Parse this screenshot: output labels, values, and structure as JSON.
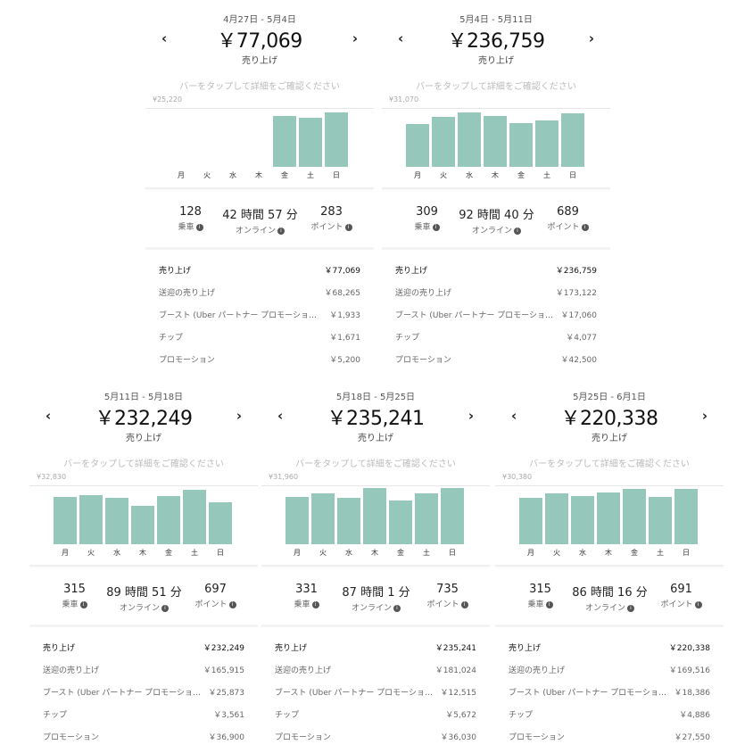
{
  "common": {
    "sales_label": "売り上げ",
    "hint": "バーをタップして詳細をご確認ください",
    "days": [
      "月",
      "火",
      "水",
      "木",
      "金",
      "土",
      "日"
    ],
    "stat_labels": [
      "乗車",
      "オンライン",
      "ポイント"
    ],
    "breakdown_labels": [
      "売り上げ",
      "送迎の売り上げ",
      "ブースト (Uber パートナー プロモーショ…",
      "チップ",
      "プロモーション"
    ],
    "prev": "‹",
    "next": "›",
    "bar_color": "#95c8bb"
  },
  "panels": [
    {
      "date_range": "4月27日 - 5月4日",
      "total": "￥77,069",
      "max_label": "¥25,220",
      "max": 25220,
      "daily": [
        0,
        0,
        0,
        0,
        21700,
        20900,
        23200
      ],
      "stats": [
        "128",
        "42 時間 57 分",
        "283"
      ],
      "breakdown": [
        "￥77,069",
        "￥68,265",
        "￥1,933",
        "￥1,671",
        "￥5,200"
      ]
    },
    {
      "date_range": "5月4日 - 5月11日",
      "total": "￥236,759",
      "max_label": "¥31,070",
      "max": 31070,
      "daily": [
        22700,
        26400,
        28600,
        26700,
        23000,
        24500,
        28300
      ],
      "stats": [
        "309",
        "92 時間 40 分",
        "689"
      ],
      "breakdown": [
        "￥236,759",
        "￥173,122",
        "￥17,060",
        "￥4,077",
        "￥42,500"
      ]
    },
    {
      "date_range": "5月11日 - 5月18日",
      "total": "￥232,249",
      "max_label": "¥32,830",
      "max": 32830,
      "daily": [
        26300,
        27300,
        25900,
        21300,
        26900,
        30200,
        23300
      ],
      "stats": [
        "315",
        "89 時間 51 分",
        "697"
      ],
      "breakdown": [
        "￥232,249",
        "￥165,915",
        "￥25,873",
        "￥3,561",
        "￥36,900"
      ]
    },
    {
      "date_range": "5月18日 - 5月25日",
      "total": "￥235,241",
      "max_label": "¥31,960",
      "max": 31960,
      "daily": [
        25600,
        27500,
        25200,
        30400,
        23700,
        27500,
        30400
      ],
      "stats": [
        "331",
        "87 時間 1 分",
        "735"
      ],
      "breakdown": [
        "￥235,241",
        "￥181,024",
        "￥12,515",
        "￥5,672",
        "￥36,030"
      ]
    },
    {
      "date_range": "5月25日 - 6月1日",
      "total": "￥220,338",
      "max_label": "¥30,380",
      "max": 30380,
      "daily": [
        24000,
        26100,
        24900,
        26700,
        28600,
        24300,
        28600
      ],
      "stats": [
        "315",
        "86 時間 16 分",
        "691"
      ],
      "breakdown": [
        "￥220,338",
        "￥169,516",
        "￥18,386",
        "￥4,886",
        "￥27,550"
      ]
    }
  ]
}
